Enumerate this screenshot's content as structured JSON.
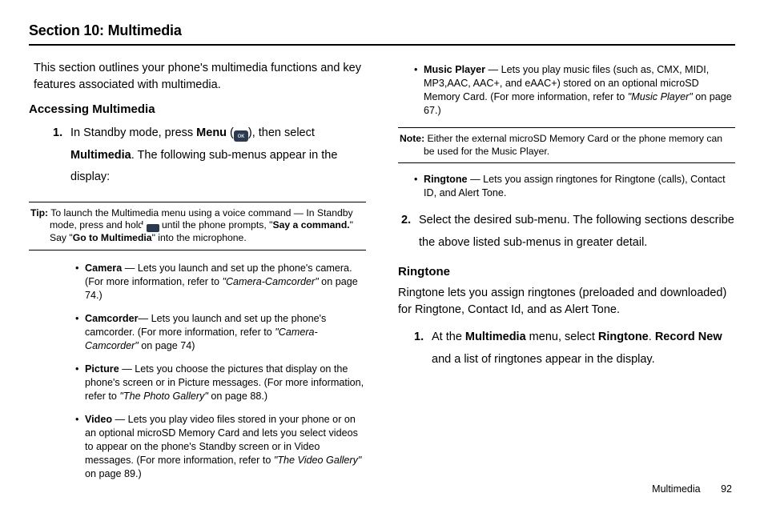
{
  "section_title": "Section 10: Multimedia",
  "intro": "This section outlines your phone's multimedia functions and key features associated with multimedia.",
  "accessing_heading": "Accessing Multimedia",
  "step1_num": "1.",
  "step1_p1a": "In Standby mode, press ",
  "step1_b1": "Menu",
  "step1_p1b": " (",
  "step1_p1c": "), then select ",
  "step1_b2": "Multimedia",
  "step1_p1d": ". The following sub-menus appear in the display:",
  "tip_lead": "Tip:",
  "tip_text_a": " To launch the Multimedia menu using a voice command — In Standby mode, press and hold ",
  "tip_text_b": " until the phone prompts, \"",
  "tip_bold1": "Say a command.",
  "tip_text_c": "\" Say \"",
  "tip_bold2": "Go to Multimedia",
  "tip_text_d": "\" into the microphone.",
  "bullets_left": [
    {
      "title": "Camera",
      "sep": " — ",
      "body_a": "Lets you launch and set up the phone's camera. (For more information, refer to ",
      "ref": "\"Camera-Camcorder\"",
      "body_b": "  on page 74.)"
    },
    {
      "title": "Camcorder",
      "sep": "— ",
      "body_a": "Lets you launch and set up the phone's camcorder. (For more information, refer to ",
      "ref": "\"Camera-Camcorder\"",
      "body_b": "  on page 74)"
    },
    {
      "title": "Picture",
      "sep": " — ",
      "body_a": "Lets you choose the pictures that display on the phone's screen or in Picture messages. (For more information, refer to ",
      "ref": "\"The Photo Gallery\"",
      "body_b": "  on page 88.)"
    },
    {
      "title": "Video",
      "sep": " — ",
      "body_a": "Lets you play video files stored in your phone or on an optional microSD Memory Card and lets you select videos to appear on the phone's Standby screen or in Video messages. (For more information, refer to ",
      "ref": "\"The Video Gallery\"",
      "body_b": "  on page 89.)"
    }
  ],
  "bullets_right_top": [
    {
      "title": "Music Player",
      "sep": " — ",
      "body_a": "Lets you play music files (such as, CMX, MIDI, MP3,AAC, AAC+, and eAAC+) stored on an optional microSD Memory Card. (For more information, refer to ",
      "ref": "\"Music Player\"",
      "body_b": "  on page 67.)"
    }
  ],
  "note_lead": "Note:",
  "note_text": " Either the external microSD Memory Card or the phone memory can be used for the Music Player.",
  "bullets_right_bottom": [
    {
      "title": "Ringtone",
      "sep": " — ",
      "body_a": "Lets you assign ringtones for Ringtone (calls), Contact ID, and Alert Tone.",
      "ref": "",
      "body_b": ""
    }
  ],
  "step2_num": "2.",
  "step2_text": "Select the desired sub-menu. The following sections describe the above listed sub-menus in greater detail.",
  "ringtone_heading": "Ringtone",
  "ringtone_intro": "Ringtone lets you assign ringtones (preloaded and downloaded) for Ringtone, Contact Id, and as Alert Tone.",
  "rstep_num": "1.",
  "rstep_a": "At the ",
  "rstep_b1": "Multimedia",
  "rstep_b": " menu, select ",
  "rstep_b2": "Ringtone",
  "rstep_c": ". ",
  "rstep_b3": "Record New",
  "rstep_d": " and a list of ringtones appear in the display.",
  "footer_label": "Multimedia",
  "footer_page": "92"
}
